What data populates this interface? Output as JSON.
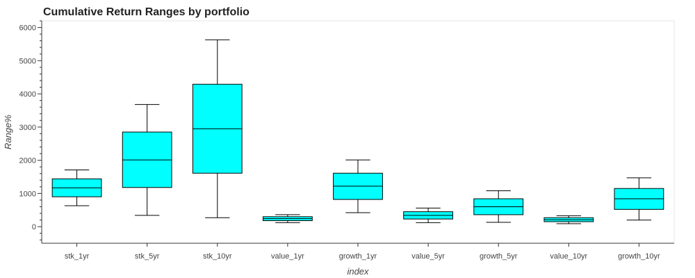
{
  "chart_data": {
    "type": "box",
    "title": "Cumulative Return Ranges by portfolio",
    "xlabel": "index",
    "ylabel": "Range%",
    "ylim": [
      -500,
      6200
    ],
    "yticks": [
      0,
      1000,
      2000,
      3000,
      4000,
      5000,
      6000
    ],
    "grid": false,
    "box_color": "#00ffff",
    "categories": [
      "stk_1yr",
      "stk_5yr",
      "stk_10yr",
      "value_1yr",
      "growth_1yr",
      "value_5yr",
      "growth_5yr",
      "value_10yr",
      "growth_10yr"
    ],
    "series": [
      {
        "whisker_low": 630,
        "q1": 900,
        "median": 1170,
        "q3": 1440,
        "whisker_high": 1710
      },
      {
        "whisker_low": 340,
        "q1": 1180,
        "median": 2010,
        "q3": 2850,
        "whisker_high": 3680
      },
      {
        "whisker_low": 270,
        "q1": 1610,
        "median": 2950,
        "q3": 4290,
        "whisker_high": 5630
      },
      {
        "whisker_low": 120,
        "q1": 180,
        "median": 240,
        "q3": 300,
        "whisker_high": 360
      },
      {
        "whisker_low": 420,
        "q1": 820,
        "median": 1220,
        "q3": 1610,
        "whisker_high": 2010
      },
      {
        "whisker_low": 120,
        "q1": 230,
        "median": 340,
        "q3": 450,
        "whisker_high": 560
      },
      {
        "whisker_low": 130,
        "q1": 360,
        "median": 600,
        "q3": 840,
        "whisker_high": 1080
      },
      {
        "whisker_low": 90,
        "q1": 150,
        "median": 210,
        "q3": 270,
        "whisker_high": 330
      },
      {
        "whisker_low": 200,
        "q1": 520,
        "median": 840,
        "q3": 1150,
        "whisker_high": 1470
      }
    ]
  }
}
